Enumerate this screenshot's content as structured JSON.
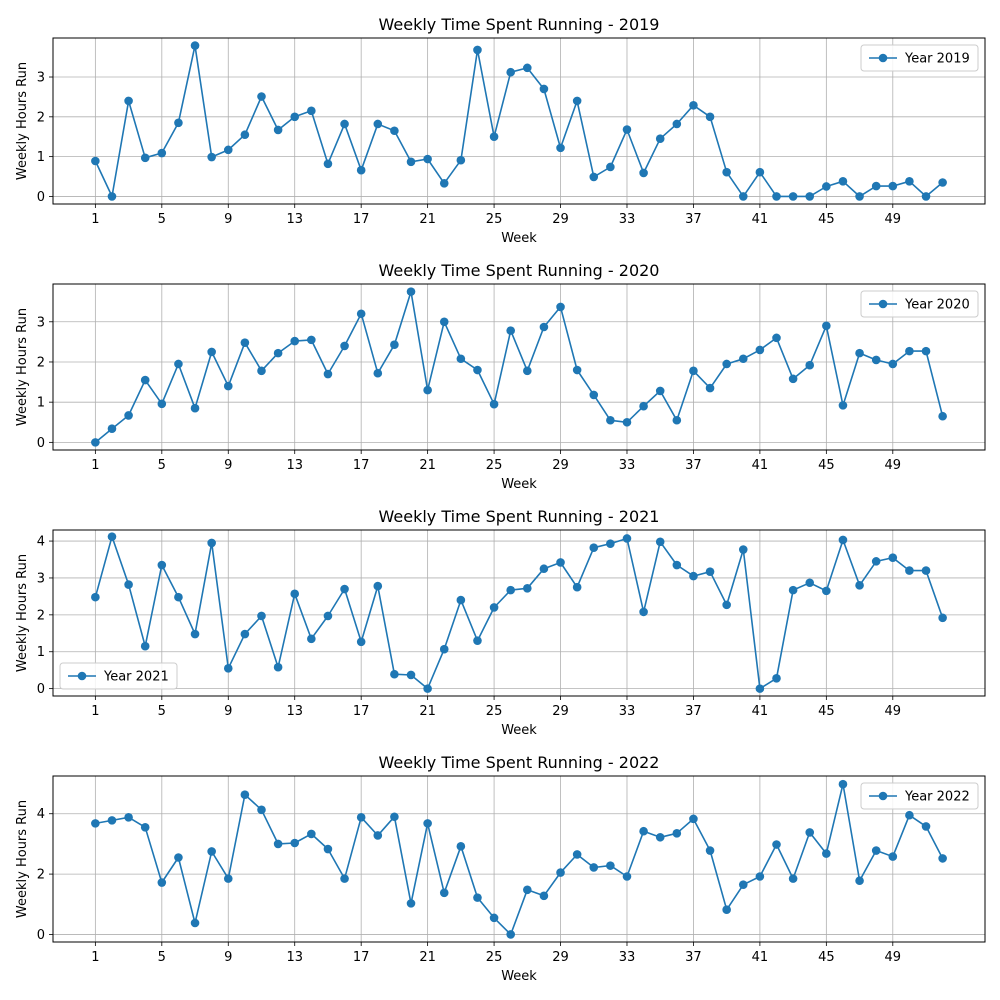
{
  "chart_data": [
    {
      "type": "line",
      "title": "Weekly Time Spent Running - 2019",
      "xlabel": "Week",
      "ylabel": "Weekly Hours Run",
      "color": "#1f77b4",
      "grid": true,
      "legend_position": "top-right",
      "xlim": [
        -1.55,
        54.55
      ],
      "ylim": [
        -0.19,
        3.98
      ],
      "xticks": [
        1,
        5,
        9,
        13,
        17,
        21,
        25,
        29,
        33,
        37,
        41,
        45,
        49
      ],
      "yticks": [
        0,
        1,
        2,
        3
      ],
      "series": [
        {
          "name": "Year 2019",
          "x": [
            1,
            2,
            3,
            4,
            5,
            6,
            7,
            8,
            9,
            10,
            11,
            12,
            13,
            14,
            15,
            16,
            17,
            18,
            19,
            20,
            21,
            22,
            23,
            24,
            25,
            26,
            27,
            28,
            29,
            30,
            31,
            32,
            33,
            34,
            35,
            36,
            37,
            38,
            39,
            40,
            41,
            42,
            43,
            44,
            45,
            46,
            47,
            48,
            49,
            50,
            51,
            52
          ],
          "values": [
            0.89,
            0.0,
            2.4,
            0.97,
            1.09,
            1.85,
            3.79,
            0.99,
            1.17,
            1.55,
            2.51,
            1.67,
            2.0,
            2.15,
            0.82,
            1.82,
            0.66,
            1.82,
            1.65,
            0.87,
            0.94,
            0.33,
            0.91,
            3.68,
            1.5,
            3.12,
            3.23,
            2.7,
            1.22,
            2.4,
            0.49,
            0.74,
            1.68,
            0.59,
            1.45,
            1.82,
            2.29,
            2.0,
            0.61,
            0.0,
            0.61,
            0.0,
            0.0,
            0.0,
            0.25,
            0.38,
            0.0,
            0.26,
            0.26,
            0.38,
            0.0,
            0.35
          ]
        }
      ]
    },
    {
      "type": "line",
      "title": "Weekly Time Spent Running - 2020",
      "xlabel": "Week",
      "ylabel": "Weekly Hours Run",
      "color": "#1f77b4",
      "grid": true,
      "legend_position": "top-right",
      "xlim": [
        -1.55,
        54.55
      ],
      "ylim": [
        -0.19,
        3.94
      ],
      "xticks": [
        1,
        5,
        9,
        13,
        17,
        21,
        25,
        29,
        33,
        37,
        41,
        45,
        49
      ],
      "yticks": [
        0,
        1,
        2,
        3
      ],
      "series": [
        {
          "name": "Year 2020",
          "x": [
            1,
            2,
            3,
            4,
            5,
            6,
            7,
            8,
            9,
            10,
            11,
            12,
            13,
            14,
            15,
            16,
            17,
            18,
            19,
            20,
            21,
            22,
            23,
            24,
            25,
            26,
            27,
            28,
            29,
            30,
            31,
            32,
            33,
            34,
            35,
            36,
            37,
            38,
            39,
            40,
            41,
            42,
            43,
            44,
            45,
            46,
            47,
            48,
            49,
            50,
            51,
            52
          ],
          "values": [
            0.0,
            0.34,
            0.67,
            1.55,
            0.96,
            1.95,
            0.85,
            2.25,
            1.4,
            2.48,
            1.78,
            2.22,
            2.52,
            2.55,
            1.7,
            2.4,
            3.2,
            1.72,
            2.43,
            3.75,
            1.3,
            3.0,
            2.08,
            1.8,
            0.95,
            2.78,
            1.78,
            2.87,
            3.37,
            1.8,
            1.18,
            0.55,
            0.5,
            0.9,
            1.28,
            0.55,
            1.78,
            1.35,
            1.95,
            2.08,
            2.3,
            2.6,
            1.58,
            1.92,
            2.9,
            0.92,
            2.22,
            2.05,
            1.95,
            2.27,
            2.27,
            0.65
          ]
        }
      ]
    },
    {
      "type": "line",
      "title": "Weekly Time Spent Running - 2021",
      "xlabel": "Week",
      "ylabel": "Weekly Hours Run",
      "color": "#1f77b4",
      "grid": true,
      "legend_position": "bottom-left",
      "xlim": [
        -1.55,
        54.55
      ],
      "ylim": [
        -0.2,
        4.3
      ],
      "xticks": [
        1,
        5,
        9,
        13,
        17,
        21,
        25,
        29,
        33,
        37,
        41,
        45,
        49
      ],
      "yticks": [
        0,
        1,
        2,
        3,
        4
      ],
      "series": [
        {
          "name": "Year 2021",
          "x": [
            1,
            2,
            3,
            4,
            5,
            6,
            7,
            8,
            9,
            10,
            11,
            12,
            13,
            14,
            15,
            16,
            17,
            18,
            19,
            20,
            21,
            22,
            23,
            24,
            25,
            26,
            27,
            28,
            29,
            30,
            31,
            32,
            33,
            34,
            35,
            36,
            37,
            38,
            39,
            40,
            41,
            42,
            43,
            44,
            45,
            46,
            47,
            48,
            49,
            50,
            51,
            52
          ],
          "values": [
            2.48,
            4.12,
            2.82,
            1.15,
            3.35,
            2.48,
            1.48,
            3.95,
            0.55,
            1.48,
            1.97,
            0.58,
            2.57,
            1.35,
            1.97,
            2.7,
            1.27,
            2.78,
            0.39,
            0.37,
            0.0,
            1.07,
            2.4,
            1.3,
            2.2,
            2.67,
            2.72,
            3.25,
            3.42,
            2.75,
            3.82,
            3.93,
            4.07,
            2.08,
            3.98,
            3.35,
            3.05,
            3.17,
            2.27,
            3.77,
            0.0,
            0.28,
            2.67,
            2.87,
            2.65,
            4.03,
            2.8,
            3.45,
            3.55,
            3.2,
            3.2,
            1.92
          ]
        }
      ]
    },
    {
      "type": "line",
      "title": "Weekly Time Spent Running - 2022",
      "xlabel": "Week",
      "ylabel": "Weekly Hours Run",
      "color": "#1f77b4",
      "grid": true,
      "legend_position": "top-right",
      "xlim": [
        -1.55,
        54.55
      ],
      "ylim": [
        -0.25,
        5.25
      ],
      "xticks": [
        1,
        5,
        9,
        13,
        17,
        21,
        25,
        29,
        33,
        37,
        41,
        45,
        49
      ],
      "yticks": [
        0,
        2,
        4
      ],
      "series": [
        {
          "name": "Year 2022",
          "x": [
            1,
            2,
            3,
            4,
            5,
            6,
            7,
            8,
            9,
            10,
            11,
            12,
            13,
            14,
            15,
            16,
            17,
            18,
            19,
            20,
            21,
            22,
            23,
            24,
            25,
            26,
            27,
            28,
            29,
            30,
            31,
            32,
            33,
            34,
            35,
            36,
            37,
            38,
            39,
            40,
            41,
            42,
            43,
            44,
            45,
            46,
            47,
            48,
            49,
            50,
            51,
            52
          ],
          "values": [
            3.68,
            3.78,
            3.88,
            3.55,
            1.72,
            2.55,
            0.38,
            2.75,
            1.85,
            4.63,
            4.13,
            3.0,
            3.03,
            3.33,
            2.83,
            1.85,
            3.88,
            3.28,
            3.9,
            1.03,
            3.68,
            1.38,
            2.92,
            1.22,
            0.55,
            0.0,
            1.48,
            1.28,
            2.05,
            2.65,
            2.22,
            2.28,
            1.92,
            3.42,
            3.22,
            3.35,
            3.83,
            2.78,
            0.82,
            1.65,
            1.92,
            2.98,
            1.85,
            3.38,
            2.68,
            4.98,
            1.78,
            2.78,
            2.58,
            3.95,
            3.58,
            2.52
          ]
        }
      ]
    }
  ]
}
